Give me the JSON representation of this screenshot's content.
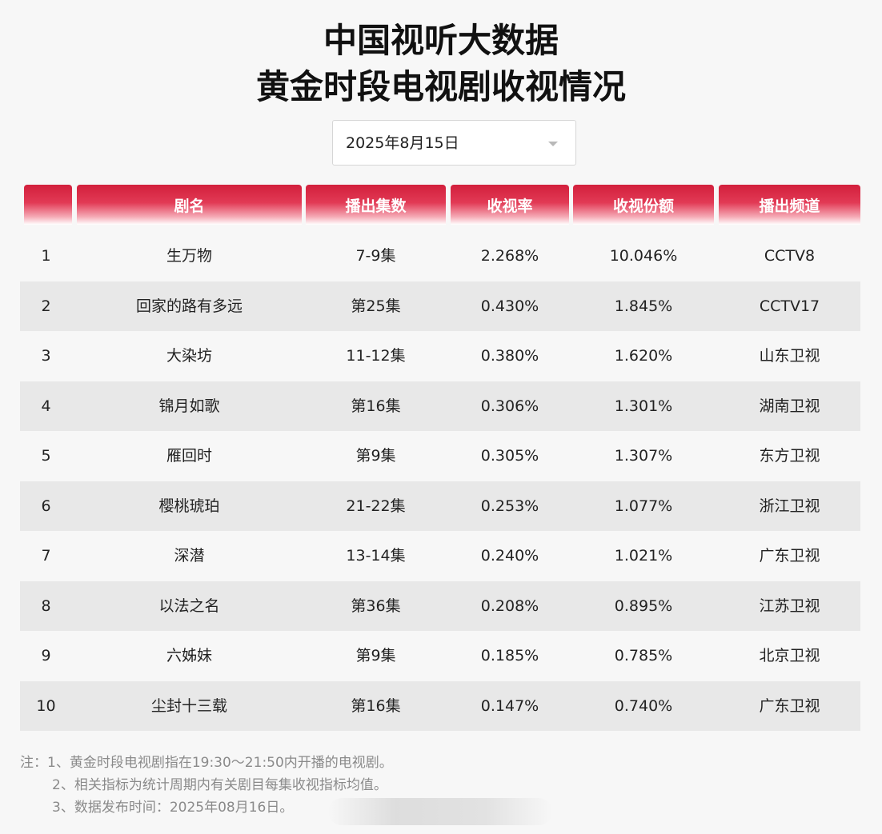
{
  "title": {
    "line1": "中国视听大数据",
    "line2": "黄金时段电视剧收视情况"
  },
  "date_select": {
    "value": "2025年8月15日",
    "icon": "chevron-down-icon"
  },
  "table": {
    "headers": [
      "",
      "剧名",
      "播出集数",
      "收视率",
      "收视份额",
      "播出频道"
    ],
    "rows": [
      {
        "rank": "1",
        "name": "生万物",
        "episodes": "7-9集",
        "rating": "2.268%",
        "share": "10.046%",
        "channel": "CCTV8"
      },
      {
        "rank": "2",
        "name": "回家的路有多远",
        "episodes": "第25集",
        "rating": "0.430%",
        "share": "1.845%",
        "channel": "CCTV17"
      },
      {
        "rank": "3",
        "name": "大染坊",
        "episodes": "11-12集",
        "rating": "0.380%",
        "share": "1.620%",
        "channel": "山东卫视"
      },
      {
        "rank": "4",
        "name": "锦月如歌",
        "episodes": "第16集",
        "rating": "0.306%",
        "share": "1.301%",
        "channel": "湖南卫视"
      },
      {
        "rank": "5",
        "name": "雁回时",
        "episodes": "第9集",
        "rating": "0.305%",
        "share": "1.307%",
        "channel": "东方卫视"
      },
      {
        "rank": "6",
        "name": "樱桃琥珀",
        "episodes": "21-22集",
        "rating": "0.253%",
        "share": "1.077%",
        "channel": "浙江卫视"
      },
      {
        "rank": "7",
        "name": "深潜",
        "episodes": "13-14集",
        "rating": "0.240%",
        "share": "1.021%",
        "channel": "广东卫视"
      },
      {
        "rank": "8",
        "name": "以法之名",
        "episodes": "第36集",
        "rating": "0.208%",
        "share": "0.895%",
        "channel": "江苏卫视"
      },
      {
        "rank": "9",
        "name": "六姊妹",
        "episodes": "第9集",
        "rating": "0.185%",
        "share": "0.785%",
        "channel": "北京卫视"
      },
      {
        "rank": "10",
        "name": "尘封十三载",
        "episodes": "第16集",
        "rating": "0.147%",
        "share": "0.740%",
        "channel": "广东卫视"
      }
    ]
  },
  "notes": [
    "注：1、黄金时段电视剧指在19:30～21:50内开播的电视剧。",
    "2、相关指标为统计周期内有关剧目每集收视指标均值。",
    "3、数据发布时间：2025年08月16日。"
  ],
  "colors": {
    "header_red": "#d21f3c",
    "row_alt": "#e8e8e8",
    "background": "#f7f7f7",
    "note_gray": "#8a8a8a"
  }
}
